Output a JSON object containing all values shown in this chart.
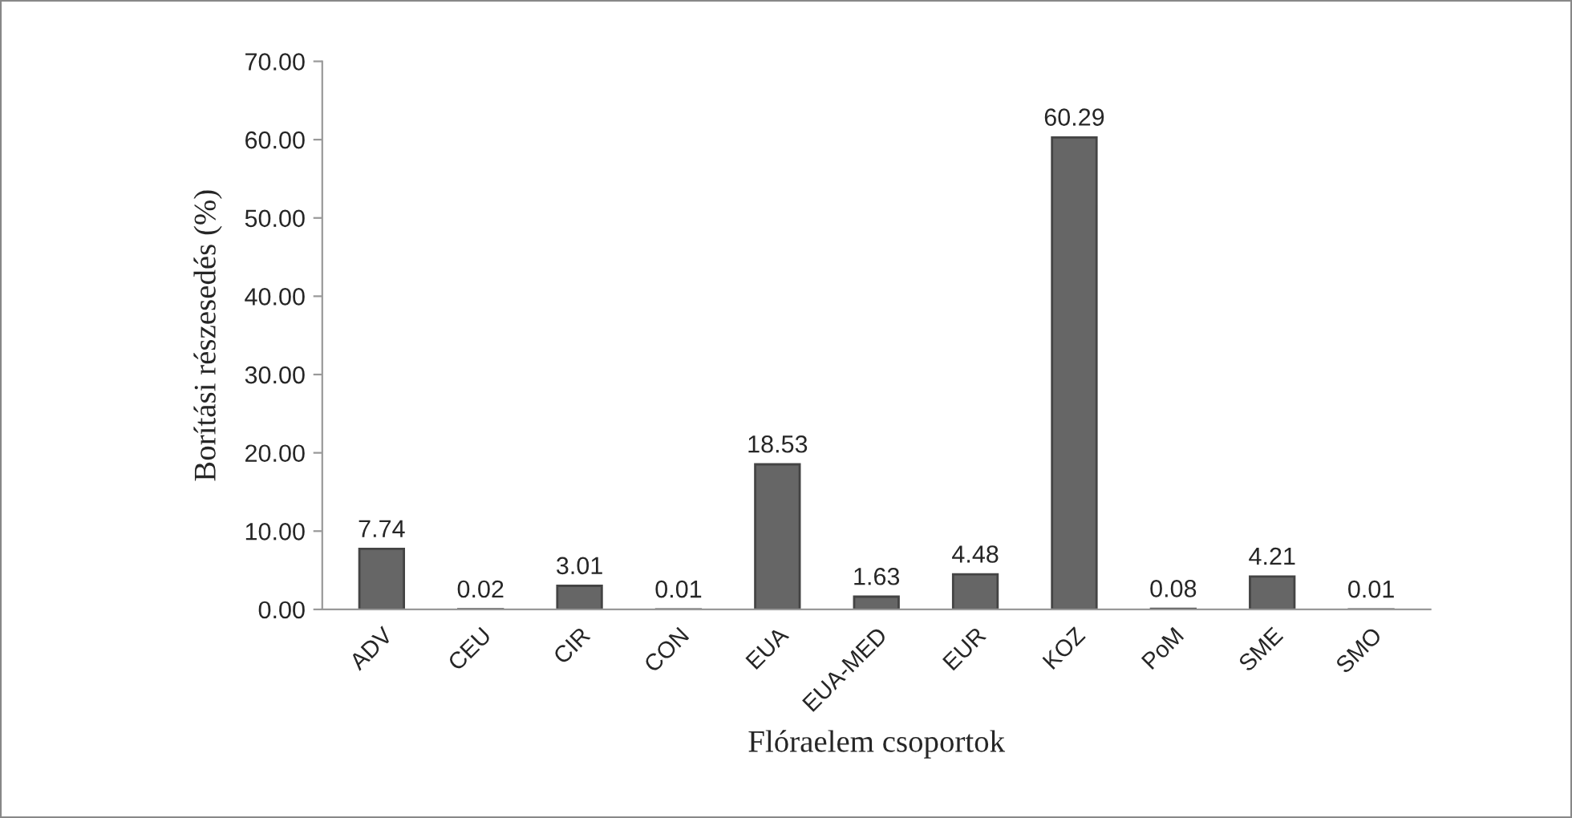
{
  "chart_data": {
    "type": "bar",
    "xlabel": "Flóraelem csoportok",
    "ylabel": "Borítási részesedés (%)",
    "categories": [
      "ADV",
      "CEU",
      "CIR",
      "CON",
      "EUA",
      "EUA-MED",
      "EUR",
      "KOZ",
      "PoM",
      "SME",
      "SMO"
    ],
    "values": [
      7.74,
      0.02,
      3.01,
      0.01,
      18.53,
      1.63,
      4.48,
      60.29,
      0.08,
      4.21,
      0.01
    ],
    "color": "#666666",
    "ylim": [
      0,
      70
    ],
    "yticks": [
      {
        "value": 0,
        "label": "0.00"
      },
      {
        "value": 10,
        "label": "10.00"
      },
      {
        "value": 20,
        "label": "20.00"
      },
      {
        "value": 30,
        "label": "30.00"
      },
      {
        "value": 40,
        "label": "40.00"
      },
      {
        "value": 50,
        "label": "50.00"
      },
      {
        "value": 60,
        "label": "60.00"
      },
      {
        "value": 70,
        "label": "70.00"
      }
    ],
    "data_labels": true,
    "grid": false,
    "legend": false
  }
}
